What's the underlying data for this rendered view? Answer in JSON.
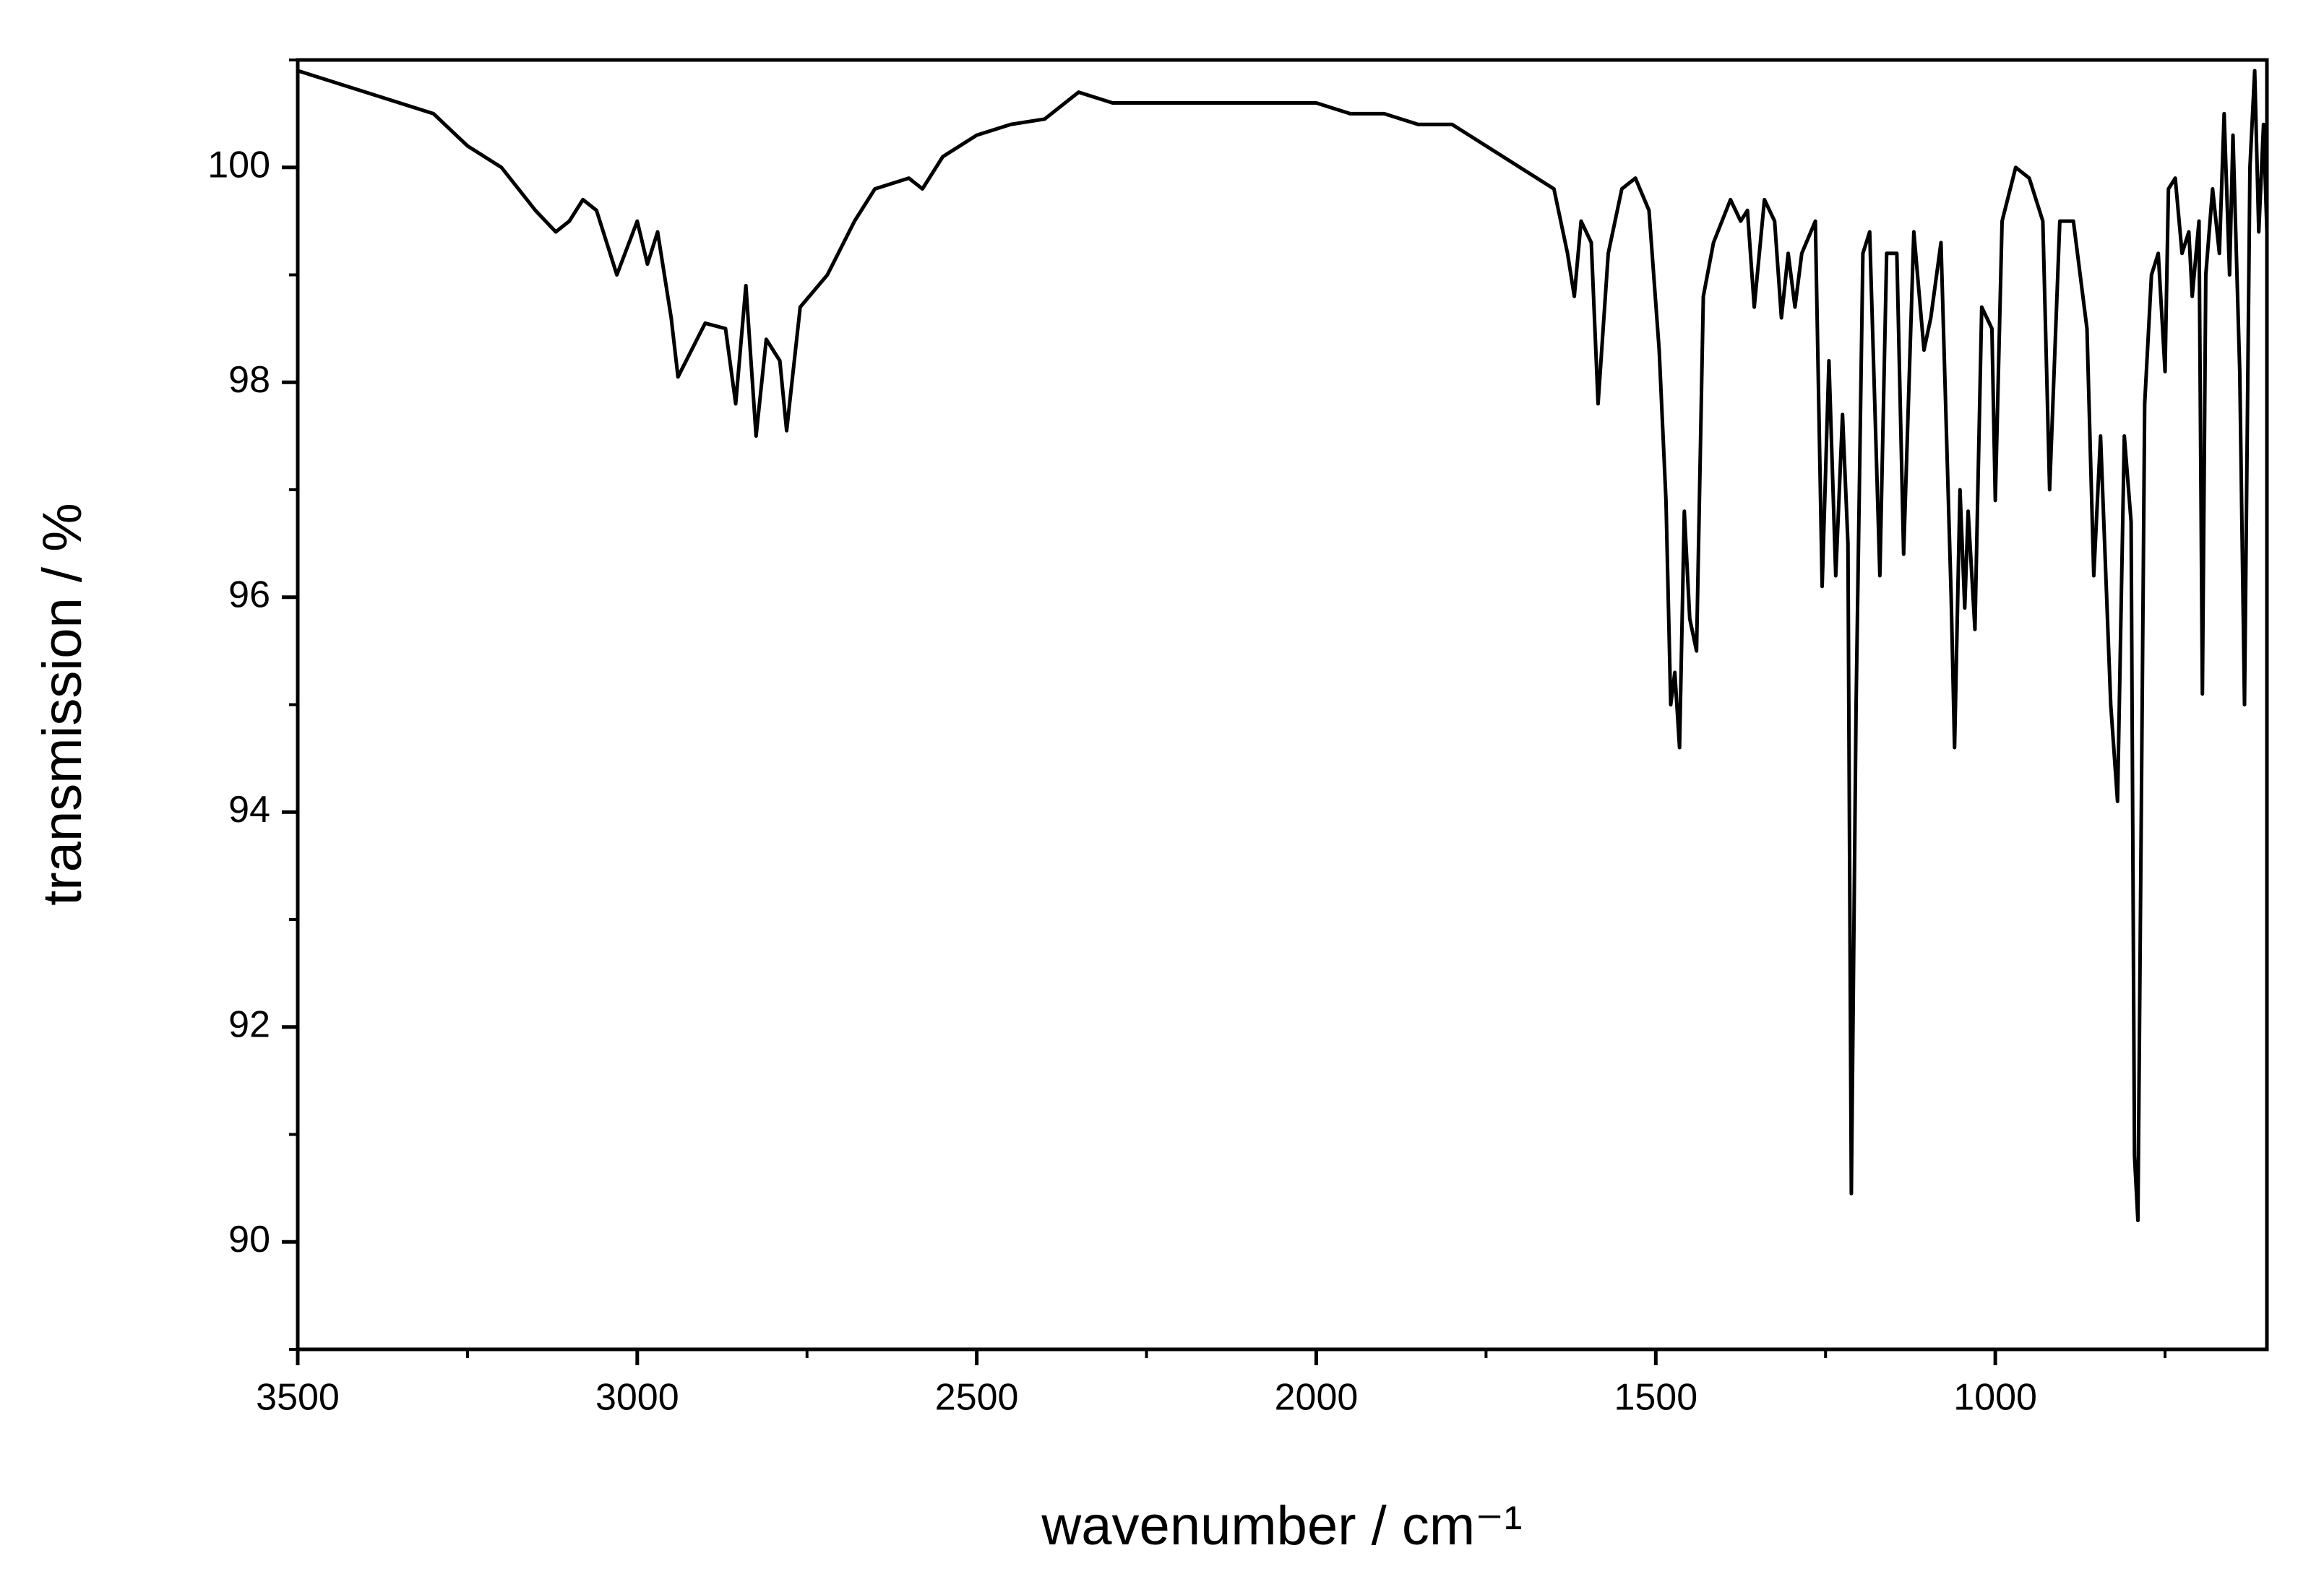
{
  "chart_data": {
    "type": "line",
    "xlabel": "wavenumber / cm⁻¹",
    "ylabel": "transmission / %",
    "xlim": [
      3500,
      600
    ],
    "xticks": [
      3500,
      3000,
      2500,
      2000,
      1500,
      1000
    ],
    "xminorticks": [
      3250,
      2750,
      2250,
      1750,
      1250,
      750
    ],
    "ylim": [
      89,
      101
    ],
    "yticks": [
      90,
      92,
      94,
      96,
      98,
      100
    ],
    "yminorticks": [
      89,
      91,
      93,
      95,
      97,
      99,
      101
    ],
    "color": "#000000",
    "x": [
      3500,
      3450,
      3400,
      3350,
      3300,
      3250,
      3200,
      3150,
      3120,
      3100,
      3080,
      3060,
      3030,
      3000,
      2985,
      2970,
      2950,
      2940,
      2920,
      2900,
      2870,
      2855,
      2840,
      2825,
      2810,
      2790,
      2780,
      2760,
      2720,
      2680,
      2650,
      2600,
      2580,
      2550,
      2500,
      2450,
      2400,
      2350,
      2300,
      2200,
      2100,
      2000,
      1950,
      1900,
      1850,
      1800,
      1750,
      1700,
      1650,
      1630,
      1620,
      1610,
      1595,
      1585,
      1570,
      1550,
      1530,
      1510,
      1495,
      1485,
      1478,
      1472,
      1465,
      1458,
      1450,
      1440,
      1430,
      1415,
      1390,
      1375,
      1365,
      1355,
      1340,
      1325,
      1315,
      1305,
      1295,
      1285,
      1265,
      1255,
      1245,
      1235,
      1225,
      1217,
      1212,
      1205,
      1195,
      1185,
      1170,
      1160,
      1145,
      1135,
      1120,
      1105,
      1095,
      1080,
      1065,
      1060,
      1052,
      1045,
      1040,
      1030,
      1020,
      1005,
      1000,
      990,
      970,
      950,
      930,
      920,
      905,
      885,
      865,
      855,
      845,
      830,
      820,
      810,
      800,
      795,
      790,
      780,
      770,
      760,
      750,
      745,
      735,
      725,
      715,
      710,
      700,
      695,
      690,
      680,
      670,
      663,
      655,
      650,
      640,
      633,
      625,
      618,
      612,
      605,
      600
    ],
    "values": [
      100.9,
      100.8,
      100.7,
      100.6,
      100.5,
      100.2,
      100.0,
      99.6,
      99.4,
      99.5,
      99.7,
      99.6,
      99.0,
      99.5,
      99.1,
      99.4,
      98.6,
      98.05,
      98.3,
      98.55,
      98.5,
      97.8,
      98.9,
      97.5,
      98.4,
      98.2,
      97.55,
      98.7,
      99.0,
      99.5,
      99.8,
      99.9,
      99.8,
      100.1,
      100.3,
      100.4,
      100.45,
      100.7,
      100.6,
      100.6,
      100.6,
      100.6,
      100.5,
      100.5,
      100.4,
      100.4,
      100.2,
      100.0,
      99.8,
      99.2,
      98.8,
      99.5,
      99.3,
      97.8,
      99.2,
      99.8,
      99.9,
      99.6,
      98.3,
      96.9,
      95.0,
      95.3,
      94.6,
      96.8,
      95.8,
      95.5,
      98.8,
      99.3,
      99.7,
      99.5,
      99.6,
      98.7,
      99.7,
      99.5,
      98.6,
      99.2,
      98.7,
      99.2,
      99.5,
      96.1,
      98.2,
      96.2,
      97.7,
      96.5,
      90.45,
      95.0,
      99.2,
      99.4,
      96.2,
      99.2,
      99.2,
      96.4,
      99.4,
      98.3,
      98.6,
      99.3,
      96.0,
      94.6,
      97.0,
      95.9,
      96.8,
      95.7,
      98.7,
      98.5,
      96.9,
      99.5,
      100.0,
      99.9,
      99.5,
      97.0,
      99.5,
      99.5,
      98.5,
      96.2,
      97.5,
      95.0,
      94.1,
      97.5,
      96.7,
      90.8,
      90.2,
      97.8,
      99.0,
      99.2,
      98.1,
      99.8,
      99.9,
      99.2,
      99.4,
      98.8,
      99.5,
      95.1,
      99.0,
      99.8,
      99.2,
      100.5,
      99.0,
      100.3,
      98.1,
      95.0,
      100.0,
      100.9,
      99.4,
      100.4,
      99.4
    ]
  }
}
